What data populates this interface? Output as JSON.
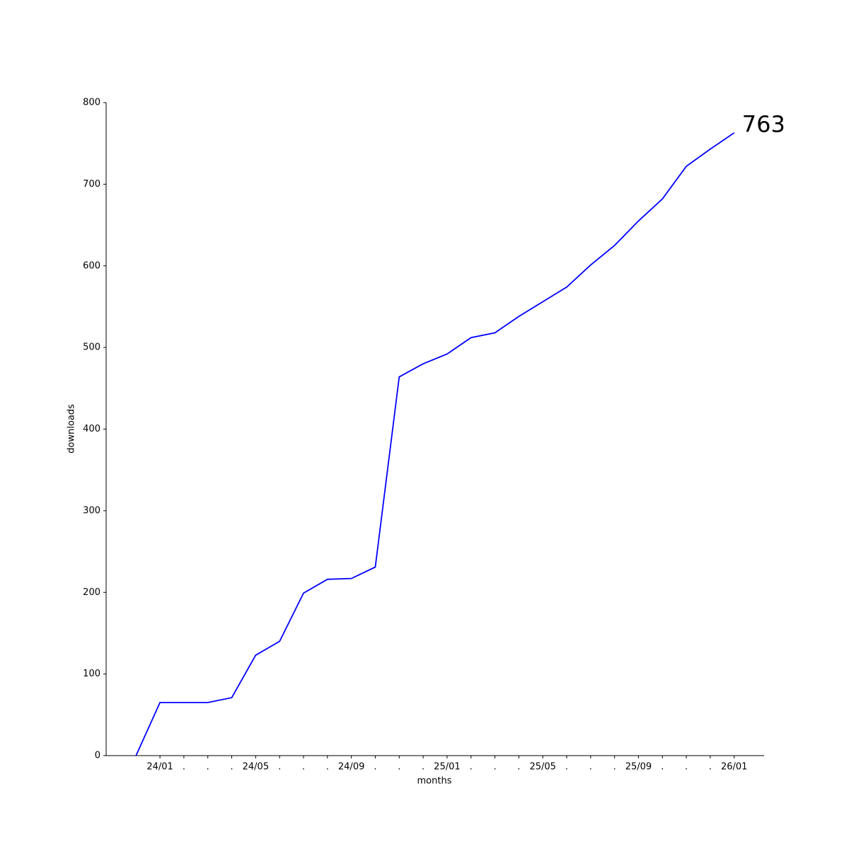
{
  "chart_data": {
    "type": "line",
    "x_label": "months",
    "y_label": "downloads",
    "categories": [
      null,
      "24/01",
      ".",
      ".",
      ".",
      "24/05",
      ".",
      ".",
      ".",
      "24/09",
      ".",
      ".",
      ".",
      "25/01",
      ".",
      ".",
      ".",
      "25/05",
      ".",
      ".",
      ".",
      "25/09",
      ".",
      ".",
      ".",
      "26/01"
    ],
    "series": [
      {
        "name": "downloads",
        "color": "#0000ff",
        "values": [
          0,
          65,
          65,
          65,
          71,
          123,
          140,
          199,
          216,
          217,
          231,
          464,
          480,
          492,
          512,
          518,
          538,
          556,
          574,
          601,
          625,
          655,
          682,
          722,
          743,
          763
        ]
      }
    ],
    "ylim": [
      0,
      800
    ],
    "yticks": [
      0,
      100,
      200,
      300,
      400,
      500,
      600,
      700,
      800
    ],
    "grid": false
  }
}
